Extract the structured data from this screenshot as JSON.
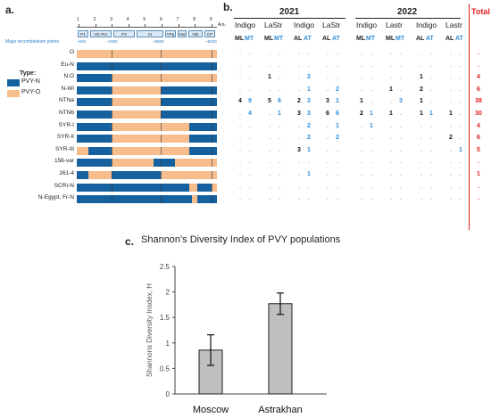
{
  "panel_a": {
    "label": "a.",
    "ticks": [
      "1",
      "2",
      "3",
      "4",
      "5",
      "6",
      "7",
      "8",
      "9"
    ],
    "end_label": "A₍n₎",
    "genes": [
      "P1",
      "HC-Pro",
      "P3",
      "CI",
      "VPg",
      "NIa",
      "NIb",
      "CP"
    ],
    "major_points_label": "Major recombination points",
    "points": [
      "~500",
      "~2390",
      "~5800",
      "~9200"
    ],
    "legend_title": "Type:",
    "legend": [
      {
        "name": "PVY-N",
        "color": "#15609f"
      },
      {
        "name": "PVY-O",
        "color": "#f8bd8c"
      }
    ],
    "rows": [
      "O",
      "Eu-N",
      "N:O",
      "N-Wi",
      "NTNa",
      "NTNb",
      "SYR-I",
      "SYR-II",
      "SYR-III",
      "156-var",
      "261-4",
      "SCRI-N",
      "N-Egypt, Fr-N"
    ]
  },
  "panel_b": {
    "label": "b.",
    "years": [
      "2021",
      "2022"
    ],
    "sites": [
      "Indigo",
      "LaStr",
      "Indigo",
      "LaStr",
      "Indigo",
      "Lastr",
      "Indigo",
      "Lastr"
    ],
    "subs": [
      "ML",
      "MT",
      "ML",
      "MT",
      "AL",
      "AT",
      "AL",
      "AT",
      "ML",
      "MT",
      "ML",
      "MT",
      "AL",
      "AT",
      "AL",
      "AT"
    ],
    "total_label": "Total",
    "cells": [
      [
        ".",
        ".",
        ".",
        ".",
        ".",
        ".",
        ".",
        ".",
        ".",
        ".",
        ".",
        ".",
        ".",
        ".",
        ".",
        "."
      ],
      [
        ".",
        ".",
        ".",
        ".",
        ".",
        ".",
        ".",
        ".",
        ".",
        ".",
        ".",
        ".",
        ".",
        ".",
        ".",
        "."
      ],
      [
        ".",
        ".",
        "1",
        ".",
        ".",
        "2",
        ".",
        ".",
        ".",
        ".",
        ".",
        ".",
        "1",
        ".",
        ".",
        "."
      ],
      [
        ".",
        ".",
        ".",
        ".",
        ".",
        "1",
        ".",
        "2",
        ".",
        ".",
        "1",
        ".",
        "2",
        ".",
        ".",
        "."
      ],
      [
        "4",
        "9",
        "5",
        "6",
        "2",
        "3",
        "3",
        "1",
        "1",
        ".",
        ".",
        "3",
        "1",
        ".",
        ".",
        "."
      ],
      [
        ".",
        "4",
        ".",
        "1",
        "3",
        "3",
        "6",
        "6",
        "2",
        "1",
        "1",
        ".",
        "1",
        "1",
        "1",
        "."
      ],
      [
        ".",
        ".",
        ".",
        ".",
        ".",
        "2",
        ".",
        "1",
        ".",
        "1",
        ".",
        ".",
        ".",
        ".",
        ".",
        "."
      ],
      [
        ".",
        ".",
        ".",
        ".",
        ".",
        "2",
        ".",
        "2",
        ".",
        ".",
        ".",
        ".",
        ".",
        ".",
        "2",
        "."
      ],
      [
        ".",
        ".",
        ".",
        ".",
        "3",
        "1",
        ".",
        ".",
        ".",
        ".",
        ".",
        ".",
        ".",
        ".",
        ".",
        "1"
      ],
      [
        ".",
        ".",
        ".",
        ".",
        ".",
        ".",
        ".",
        ".",
        ".",
        ".",
        ".",
        ".",
        ".",
        ".",
        ".",
        "."
      ],
      [
        ".",
        ".",
        ".",
        ".",
        ".",
        "1",
        ".",
        ".",
        ".",
        ".",
        ".",
        ".",
        ".",
        ".",
        ".",
        "."
      ],
      [
        ".",
        ".",
        ".",
        ".",
        ".",
        ".",
        ".",
        ".",
        ".",
        ".",
        ".",
        ".",
        ".",
        ".",
        ".",
        "."
      ],
      [
        ".",
        ".",
        ".",
        ".",
        ".",
        ".",
        ".",
        ".",
        ".",
        ".",
        ".",
        ".",
        ".",
        ".",
        ".",
        "."
      ]
    ],
    "totals": [
      ".",
      ".",
      "4",
      "6",
      "38",
      "30",
      "4",
      "6",
      "5",
      ".",
      "1",
      ".",
      "."
    ]
  },
  "panel_c": {
    "label": "c.",
    "title": "Shannon's Diversity Index of PVY populations",
    "chart_data": {
      "type": "bar",
      "title": "Shannon's Diversity Index of PVY populations",
      "categories": [
        "Moscow",
        "Astrakhan"
      ],
      "values": [
        0.86,
        1.77
      ],
      "errors": [
        0.3,
        0.21
      ],
      "ylabel": "Shannons Diversity Insdex, H",
      "xlabel": "",
      "ylim": [
        0,
        2.5
      ],
      "yticks": [
        "0",
        "0.5",
        "1",
        "1.5",
        "2",
        "2.5"
      ],
      "bar_color": "#bfbfbf",
      "grid": false
    }
  }
}
